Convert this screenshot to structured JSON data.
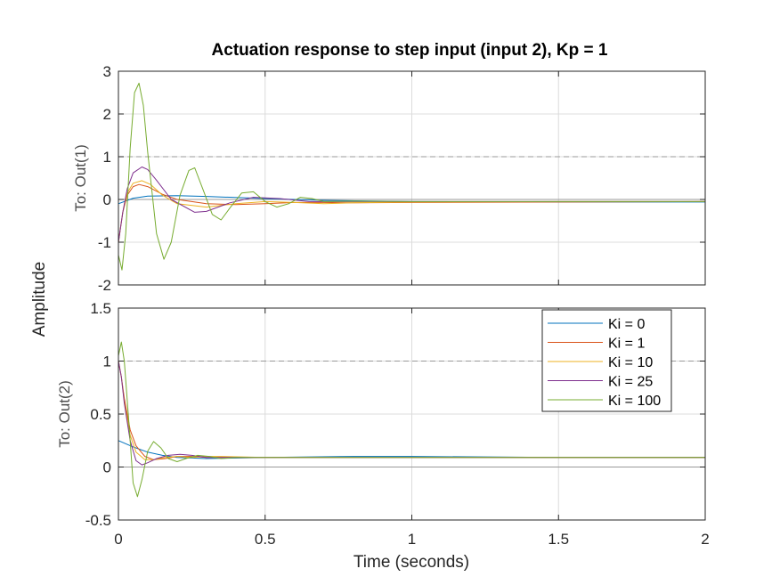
{
  "chart_data": {
    "type": "line",
    "title": "Actuation response to step input (input 2), Kp = 1",
    "xlabel": "Time (seconds)",
    "ylabel": "Amplitude",
    "xlim": [
      0,
      2
    ],
    "xticks": [
      "0",
      "0.5",
      "1",
      "1.5",
      "2"
    ],
    "grid": true,
    "legend": {
      "location": "top-right of lower axes",
      "entries": [
        "Ki = 0",
        "Ki = 1",
        "Ki = 10",
        "Ki = 25",
        "Ki = 100"
      ]
    },
    "subplots": [
      {
        "ylabel": "To: Out(1)",
        "ylim": [
          -2,
          3
        ],
        "yticks": [
          "-2",
          "-1",
          "0",
          "1",
          "2",
          "3"
        ],
        "reference_lines": [
          {
            "y": 0,
            "style": "solid"
          },
          {
            "y": 1,
            "style": "dashed"
          }
        ],
        "series": [
          {
            "name": "Ki = 0",
            "color": "#0072BD",
            "x": [
              0,
              0.05,
              0.1,
              0.2,
              0.3,
              0.5,
              0.7,
              1.0,
              1.5,
              2.0
            ],
            "values": [
              -0.1,
              0.03,
              0.08,
              0.09,
              0.07,
              0.02,
              -0.02,
              -0.05,
              -0.06,
              -0.06
            ]
          },
          {
            "name": "Ki = 1",
            "color": "#D95319",
            "x": [
              0,
              0.015,
              0.03,
              0.05,
              0.07,
              0.1,
              0.15,
              0.2,
              0.3,
              0.4,
              0.5,
              0.6,
              0.7,
              0.8,
              1.0,
              1.5,
              2.0
            ],
            "values": [
              -1.0,
              -0.3,
              0.1,
              0.3,
              0.35,
              0.3,
              0.12,
              0.0,
              -0.1,
              -0.12,
              -0.1,
              -0.07,
              -0.07,
              -0.08,
              -0.07,
              -0.06,
              -0.05
            ]
          },
          {
            "name": "Ki = 10",
            "color": "#EDB120",
            "x": [
              0,
              0.015,
              0.03,
              0.05,
              0.08,
              0.11,
              0.15,
              0.2,
              0.3,
              0.4,
              0.5,
              0.6,
              0.7,
              0.8,
              1.0,
              1.5,
              2.0
            ],
            "values": [
              -1.0,
              -0.3,
              0.15,
              0.38,
              0.44,
              0.35,
              0.1,
              -0.1,
              -0.18,
              -0.1,
              -0.05,
              -0.07,
              -0.1,
              -0.08,
              -0.06,
              -0.05,
              -0.05
            ]
          },
          {
            "name": "Ki = 25",
            "color": "#7E2F8E",
            "x": [
              0,
              0.015,
              0.03,
              0.05,
              0.08,
              0.1,
              0.13,
              0.18,
              0.26,
              0.3,
              0.38,
              0.46,
              0.55,
              0.65,
              0.8,
              1.0,
              1.5,
              2.0
            ],
            "values": [
              -1.0,
              -0.3,
              0.25,
              0.62,
              0.76,
              0.7,
              0.45,
              0.0,
              -0.3,
              -0.28,
              -0.08,
              0.05,
              0.02,
              -0.05,
              -0.05,
              -0.05,
              -0.05,
              -0.05
            ]
          },
          {
            "name": "Ki = 100",
            "color": "#77AC30",
            "x": [
              0,
              0.012,
              0.025,
              0.04,
              0.055,
              0.07,
              0.085,
              0.1,
              0.13,
              0.155,
              0.18,
              0.21,
              0.24,
              0.26,
              0.29,
              0.32,
              0.35,
              0.38,
              0.42,
              0.46,
              0.5,
              0.54,
              0.58,
              0.62,
              0.66,
              0.7,
              0.8,
              1.0,
              1.5,
              2.0
            ],
            "values": [
              -1.3,
              -1.65,
              -0.8,
              1.2,
              2.5,
              2.72,
              2.2,
              1.1,
              -0.8,
              -1.4,
              -1.0,
              0.1,
              0.68,
              0.74,
              0.2,
              -0.35,
              -0.48,
              -0.2,
              0.15,
              0.18,
              -0.05,
              -0.18,
              -0.1,
              0.05,
              0.02,
              -0.05,
              -0.04,
              -0.05,
              -0.05,
              -0.05
            ]
          }
        ]
      },
      {
        "ylabel": "To: Out(2)",
        "ylim": [
          -0.5,
          1.5
        ],
        "yticks": [
          "-0.5",
          "0",
          "0.5",
          "1",
          "1.5"
        ],
        "reference_lines": [
          {
            "y": 0,
            "style": "solid"
          },
          {
            "y": 1,
            "style": "dashed"
          }
        ],
        "series": [
          {
            "name": "Ki = 0",
            "color": "#0072BD",
            "x": [
              0,
              0.05,
              0.1,
              0.15,
              0.2,
              0.3,
              0.5,
              0.8,
              1.0,
              1.5,
              2.0
            ],
            "values": [
              0.25,
              0.19,
              0.14,
              0.11,
              0.09,
              0.08,
              0.09,
              0.1,
              0.1,
              0.09,
              0.09
            ]
          },
          {
            "name": "Ki = 1",
            "color": "#D95319",
            "x": [
              0,
              0.01,
              0.02,
              0.04,
              0.06,
              0.09,
              0.12,
              0.16,
              0.2,
              0.25,
              0.3,
              0.5,
              0.8,
              1.0,
              1.5,
              2.0
            ],
            "values": [
              1.0,
              0.85,
              0.65,
              0.35,
              0.2,
              0.1,
              0.07,
              0.08,
              0.1,
              0.1,
              0.09,
              0.09,
              0.09,
              0.09,
              0.09,
              0.09
            ]
          },
          {
            "name": "Ki = 10",
            "color": "#EDB120",
            "x": [
              0,
              0.01,
              0.02,
              0.04,
              0.06,
              0.09,
              0.12,
              0.16,
              0.2,
              0.25,
              0.3,
              0.35,
              0.5,
              1.0,
              1.5,
              2.0
            ],
            "values": [
              1.0,
              0.85,
              0.62,
              0.3,
              0.14,
              0.07,
              0.07,
              0.09,
              0.1,
              0.09,
              0.1,
              0.1,
              0.09,
              0.09,
              0.09,
              0.09
            ]
          },
          {
            "name": "Ki = 25",
            "color": "#7E2F8E",
            "x": [
              0,
              0.01,
              0.02,
              0.04,
              0.06,
              0.08,
              0.1,
              0.13,
              0.17,
              0.21,
              0.25,
              0.3,
              0.35,
              0.45,
              0.6,
              1.0,
              2.0
            ],
            "values": [
              1.0,
              0.85,
              0.6,
              0.25,
              0.06,
              0.02,
              0.04,
              0.08,
              0.11,
              0.12,
              0.11,
              0.09,
              0.09,
              0.09,
              0.09,
              0.09,
              0.09
            ]
          },
          {
            "name": "Ki = 100",
            "color": "#77AC30",
            "x": [
              0,
              0.01,
              0.02,
              0.035,
              0.05,
              0.065,
              0.08,
              0.1,
              0.12,
              0.145,
              0.17,
              0.2,
              0.23,
              0.27,
              0.31,
              0.35,
              0.4,
              0.5,
              1.0,
              2.0
            ],
            "values": [
              1.05,
              1.18,
              1.0,
              0.45,
              -0.15,
              -0.28,
              -0.12,
              0.15,
              0.24,
              0.18,
              0.08,
              0.05,
              0.08,
              0.11,
              0.1,
              0.08,
              0.09,
              0.09,
              0.09,
              0.09
            ]
          }
        ]
      }
    ]
  }
}
